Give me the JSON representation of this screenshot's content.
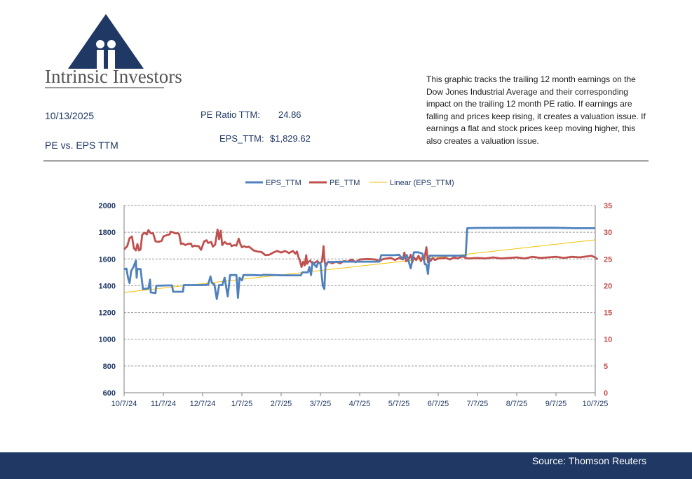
{
  "brand": {
    "name": "Intrinsic Investors"
  },
  "header": {
    "date": "10/13/2025",
    "subtitle": "PE vs. EPS TTM",
    "pe_label": "PE Ratio TTM:",
    "pe_value": "24.86",
    "eps_label": "EPS_TTM:",
    "eps_value": "$1,829.62"
  },
  "description": "This graphic tracks the trailing 12 month earnings on the Dow Jones Industrial Average and their corresponding impact on the trailing 12 month PE ratio.  If earnings are falling and prices keep rising, it creates a valuation issue.  If earnings a flat and stock prices keep moving higher, this also creates a valuation issue.",
  "footer": {
    "source": "Source: Thomson Reuters"
  },
  "colors": {
    "navy": "#1f3864",
    "eps": "#4f81bd",
    "pe": "#c0504d",
    "trend": "#f2c200"
  },
  "chart_data": {
    "type": "line",
    "x_tick_labels": [
      "10/7/24",
      "11/7/24",
      "12/7/24",
      "1/7/25",
      "2/7/25",
      "3/7/25",
      "4/7/25",
      "5/7/25",
      "6/7/25",
      "7/7/25",
      "8/7/25",
      "9/7/25",
      "10/7/25"
    ],
    "y_left": {
      "lim": [
        600,
        2000
      ],
      "ticks": [
        "600",
        "800",
        "1000",
        "1200",
        "1400",
        "1600",
        "1800",
        "2000"
      ]
    },
    "y_right": {
      "lim": [
        0,
        35
      ],
      "ticks": [
        "0",
        "5",
        "10",
        "15",
        "20",
        "25",
        "30",
        "35"
      ]
    },
    "grid": true,
    "legend_position": "top",
    "series": [
      {
        "name": "EPS_TTM",
        "axis": "left",
        "color": "#4f81bd",
        "points": [
          [
            0,
            1525
          ],
          [
            0.06,
            1528
          ],
          [
            0.1,
            1460
          ],
          [
            0.14,
            1420
          ],
          [
            0.18,
            1510
          ],
          [
            0.24,
            1540
          ],
          [
            0.3,
            1588
          ],
          [
            0.32,
            1460
          ],
          [
            0.34,
            1525
          ],
          [
            0.42,
            1525
          ],
          [
            0.45,
            1450
          ],
          [
            0.48,
            1375
          ],
          [
            0.62,
            1380
          ],
          [
            0.66,
            1445
          ],
          [
            0.68,
            1350
          ],
          [
            0.8,
            1345
          ],
          [
            0.82,
            1400
          ],
          [
            1.1,
            1402
          ],
          [
            1.22,
            1402
          ],
          [
            1.25,
            1355
          ],
          [
            1.5,
            1355
          ],
          [
            1.52,
            1405
          ],
          [
            2.0,
            1405
          ],
          [
            2.14,
            1408
          ],
          [
            2.2,
            1470
          ],
          [
            2.24,
            1420
          ],
          [
            2.3,
            1410
          ],
          [
            2.36,
            1300
          ],
          [
            2.42,
            1405
          ],
          [
            2.5,
            1405
          ],
          [
            2.56,
            1460
          ],
          [
            2.64,
            1320
          ],
          [
            2.7,
            1480
          ],
          [
            2.86,
            1480
          ],
          [
            2.9,
            1310
          ],
          [
            2.94,
            1460
          ],
          [
            3.0,
            1440
          ],
          [
            3.04,
            1480
          ],
          [
            3.3,
            1480
          ],
          [
            3.5,
            1478
          ],
          [
            3.55,
            1482
          ],
          [
            4.1,
            1478
          ],
          [
            4.4,
            1478
          ],
          [
            4.5,
            1478
          ],
          [
            4.54,
            1500
          ],
          [
            4.68,
            1500
          ],
          [
            4.72,
            1540
          ],
          [
            4.76,
            1480
          ],
          [
            4.8,
            1578
          ],
          [
            4.84,
            1560
          ],
          [
            4.9,
            1540
          ],
          [
            4.94,
            1572
          ],
          [
            5.0,
            1570
          ],
          [
            5.06,
            1400
          ],
          [
            5.1,
            1375
          ],
          [
            5.13,
            1560
          ],
          [
            5.2,
            1578
          ],
          [
            5.4,
            1578
          ],
          [
            5.5,
            1580
          ],
          [
            6.0,
            1580
          ],
          [
            6.4,
            1580
          ],
          [
            6.5,
            1580
          ],
          [
            6.55,
            1628
          ],
          [
            6.9,
            1628
          ],
          [
            7.0,
            1632
          ],
          [
            7.1,
            1600
          ],
          [
            7.2,
            1630
          ],
          [
            7.3,
            1530
          ],
          [
            7.38,
            1650
          ],
          [
            7.5,
            1650
          ],
          [
            7.6,
            1640
          ],
          [
            7.66,
            1560
          ],
          [
            7.7,
            1560
          ],
          [
            7.74,
            1488
          ],
          [
            7.78,
            1625
          ],
          [
            8.4,
            1625
          ],
          [
            8.7,
            1625
          ],
          [
            8.74,
            1830
          ],
          [
            9.0,
            1832
          ],
          [
            10.0,
            1833
          ],
          [
            11.0,
            1833
          ],
          [
            11.5,
            1830
          ],
          [
            12.0,
            1830
          ]
        ]
      },
      {
        "name": "PE_TTM",
        "axis": "right",
        "color": "#c0504d",
        "points": [
          [
            0,
            26.8
          ],
          [
            0.08,
            27.4
          ],
          [
            0.14,
            28.9
          ],
          [
            0.2,
            29.2
          ],
          [
            0.25,
            27
          ],
          [
            0.3,
            26.6
          ],
          [
            0.34,
            27.8
          ],
          [
            0.38,
            26.6
          ],
          [
            0.42,
            26.8
          ],
          [
            0.46,
            29.5
          ],
          [
            0.52,
            29.9
          ],
          [
            0.58,
            29.6
          ],
          [
            0.62,
            30.4
          ],
          [
            0.68,
            29.8
          ],
          [
            0.74,
            29.8
          ],
          [
            0.8,
            28.3
          ],
          [
            0.88,
            28.2
          ],
          [
            0.96,
            28.4
          ],
          [
            1.0,
            29.2
          ],
          [
            1.1,
            29.5
          ],
          [
            1.16,
            29.6
          ],
          [
            1.18,
            30.1
          ],
          [
            1.24,
            30
          ],
          [
            1.3,
            29.8
          ],
          [
            1.36,
            29.8
          ],
          [
            1.4,
            29.7
          ],
          [
            1.45,
            27.8
          ],
          [
            1.5,
            27.9
          ],
          [
            1.56,
            27.6
          ],
          [
            1.62,
            27.8
          ],
          [
            1.7,
            27.9
          ],
          [
            1.74,
            27.3
          ],
          [
            1.8,
            27.5
          ],
          [
            1.86,
            27.4
          ],
          [
            1.9,
            27.4
          ],
          [
            1.96,
            26.7
          ],
          [
            2.04,
            28.3
          ],
          [
            2.1,
            28.5
          ],
          [
            2.14,
            28
          ],
          [
            2.22,
            28.2
          ],
          [
            2.26,
            27.3
          ],
          [
            2.32,
            27.7
          ],
          [
            2.38,
            30.5
          ],
          [
            2.42,
            28.7
          ],
          [
            2.46,
            30.3
          ],
          [
            2.5,
            27.6
          ],
          [
            2.56,
            28.2
          ],
          [
            2.62,
            27.8
          ],
          [
            2.7,
            27.9
          ],
          [
            2.74,
            27.4
          ],
          [
            2.8,
            27.6
          ],
          [
            2.86,
            27.5
          ],
          [
            2.92,
            28.8
          ],
          [
            2.96,
            27.8
          ],
          [
            3.0,
            27.2
          ],
          [
            3.06,
            27.4
          ],
          [
            3.12,
            27.2
          ],
          [
            3.18,
            27.3
          ],
          [
            3.3,
            26.6
          ],
          [
            3.4,
            26.4
          ],
          [
            3.5,
            26.3
          ],
          [
            3.6,
            25.7
          ],
          [
            3.7,
            25.8
          ],
          [
            3.8,
            26.2
          ],
          [
            3.9,
            26.5
          ],
          [
            4.0,
            26.2
          ],
          [
            4.1,
            26.5
          ],
          [
            4.2,
            26.1
          ],
          [
            4.3,
            26.5
          ],
          [
            4.36,
            26
          ],
          [
            4.4,
            26.4
          ],
          [
            4.44,
            25.4
          ],
          [
            4.48,
            24.6
          ],
          [
            4.52,
            23.5
          ],
          [
            4.56,
            24.5
          ],
          [
            4.6,
            23.8
          ],
          [
            4.64,
            25.7
          ],
          [
            4.66,
            24.1
          ],
          [
            4.7,
            24.5
          ],
          [
            4.74,
            24.7
          ],
          [
            4.8,
            24.1
          ],
          [
            4.86,
            24.3
          ],
          [
            4.92,
            24.6
          ],
          [
            4.98,
            24.2
          ],
          [
            5.04,
            24.5
          ],
          [
            5.08,
            27.4
          ],
          [
            5.1,
            25
          ],
          [
            5.13,
            23.6
          ],
          [
            5.2,
            24.5
          ],
          [
            5.3,
            24.2
          ],
          [
            5.4,
            24.5
          ],
          [
            5.5,
            24.2
          ],
          [
            5.6,
            24.6
          ],
          [
            5.7,
            24.5
          ],
          [
            5.8,
            24.9
          ],
          [
            5.9,
            24.4
          ],
          [
            6.0,
            24.9
          ],
          [
            6.2,
            25
          ],
          [
            6.4,
            24.9
          ],
          [
            6.5,
            24.6
          ],
          [
            6.6,
            25
          ],
          [
            6.8,
            25.2
          ],
          [
            6.9,
            24.8
          ],
          [
            7.0,
            25.2
          ],
          [
            7.1,
            24.9
          ],
          [
            7.14,
            26.2
          ],
          [
            7.18,
            24.6
          ],
          [
            7.24,
            24.8
          ],
          [
            7.3,
            25.8
          ],
          [
            7.34,
            24.4
          ],
          [
            7.38,
            25.3
          ],
          [
            7.44,
            24.8
          ],
          [
            7.5,
            25.6
          ],
          [
            7.56,
            24.6
          ],
          [
            7.6,
            25.4
          ],
          [
            7.64,
            24.7
          ],
          [
            7.7,
            27.2
          ],
          [
            7.74,
            24.4
          ],
          [
            7.8,
            24.6
          ],
          [
            7.86,
            25.2
          ],
          [
            7.92,
            24.8
          ],
          [
            8.0,
            25.1
          ],
          [
            8.2,
            25.2
          ],
          [
            8.3,
            24.9
          ],
          [
            8.4,
            25.3
          ],
          [
            8.5,
            25.1
          ],
          [
            8.62,
            25.5
          ],
          [
            8.7,
            25.2
          ],
          [
            8.76,
            25.1
          ],
          [
            9.0,
            25.2
          ],
          [
            9.2,
            25.1
          ],
          [
            9.4,
            25.3
          ],
          [
            9.6,
            25.1
          ],
          [
            9.8,
            25.2
          ],
          [
            10.0,
            25.3
          ],
          [
            10.2,
            25.1
          ],
          [
            10.4,
            25.4
          ],
          [
            10.6,
            25.2
          ],
          [
            10.8,
            25.3
          ],
          [
            11.0,
            25.4
          ],
          [
            11.2,
            25.2
          ],
          [
            11.4,
            25.4
          ],
          [
            11.6,
            25.3
          ],
          [
            11.8,
            25.5
          ],
          [
            11.9,
            25.6
          ],
          [
            12.0,
            25.3
          ],
          [
            12.06,
            24.9
          ]
        ]
      },
      {
        "name": "Linear (EPS_TTM)",
        "axis": "left",
        "color": "#f2c200",
        "points": [
          [
            0,
            1350
          ],
          [
            12.0,
            1743
          ]
        ]
      }
    ]
  }
}
